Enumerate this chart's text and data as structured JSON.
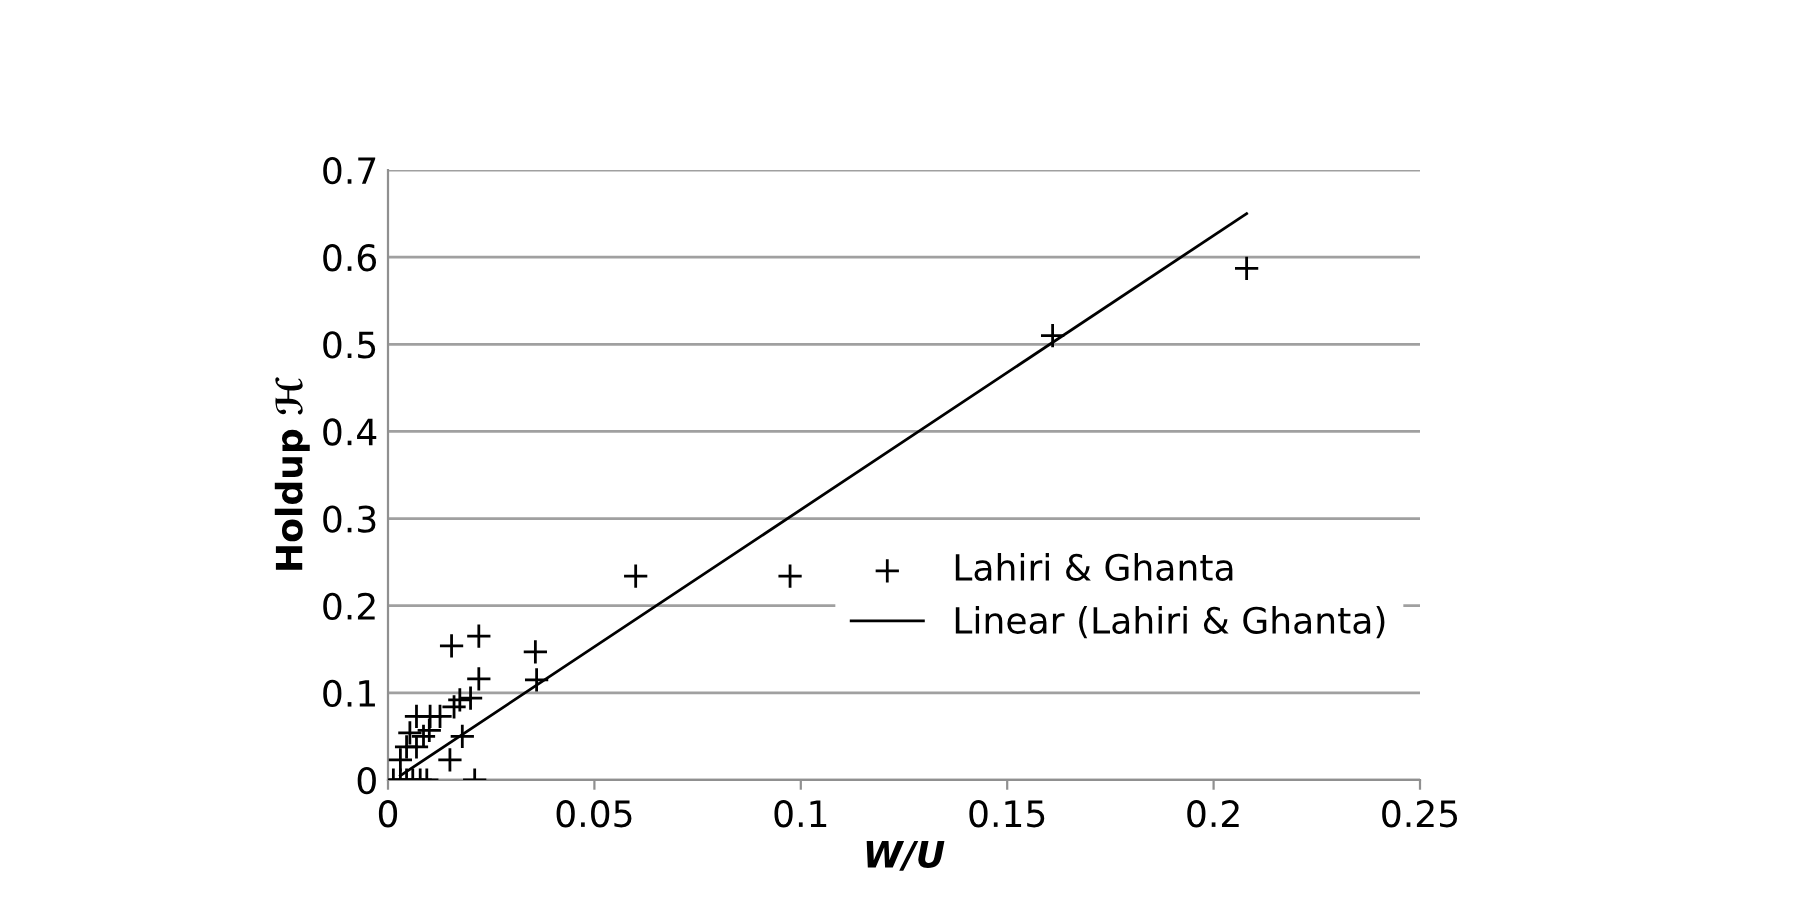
{
  "chart_data": {
    "type": "scatter",
    "xlabel": "W/U",
    "ylabel": "Holdup ℋ",
    "xlim": [
      0,
      0.25
    ],
    "ylim": [
      0,
      0.7
    ],
    "xticks": [
      0,
      0.05,
      0.1,
      0.15,
      0.2,
      0.25
    ],
    "yticks": [
      0,
      0.1,
      0.2,
      0.3,
      0.4,
      0.5,
      0.6,
      0.7
    ],
    "grid": "y",
    "legend": "right",
    "series": [
      {
        "name": "Lahiri & Ghanta",
        "marker": "cross",
        "color": "#000000",
        "x": [
          0.0154,
          0.022,
          0.0357,
          0.036,
          0.022,
          0.02,
          0.0174,
          0.016,
          0.0126,
          0.0102,
          0.0069,
          0.0053,
          0.0045,
          0.0069,
          0.003,
          0.018,
          0.015,
          0.021,
          0.0013,
          0.003,
          0.0045,
          0.006,
          0.0078,
          0.0094,
          0.01,
          0.0086,
          0.06,
          0.0974,
          0.161,
          0.208
        ],
        "values": [
          0.154,
          0.165,
          0.147,
          0.115,
          0.116,
          0.094,
          0.092,
          0.084,
          0.073,
          0.073,
          0.073,
          0.054,
          0.038,
          0.038,
          0.023,
          0.05,
          0.023,
          0,
          0,
          0,
          0,
          0,
          0,
          0,
          0.057,
          0.05,
          0.234,
          0.234,
          0.51,
          0.587
        ]
      },
      {
        "name": "Linear (Lahiri & Ghanta)",
        "type": "line",
        "line_style": "solid",
        "color": "#000000",
        "x": [
          0.003,
          0.208
        ],
        "values": [
          0.005,
          0.65
        ]
      }
    ]
  }
}
